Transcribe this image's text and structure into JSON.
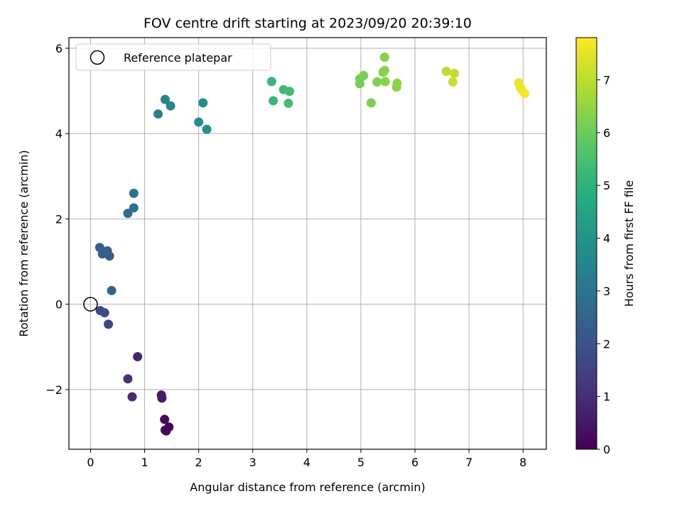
{
  "chart_data": {
    "type": "scatter",
    "title": "FOV centre drift starting at 2023/09/20 20:39:10",
    "xlabel": "Angular distance from reference (arcmin)",
    "ylabel": "Rotation from reference (arcmin)",
    "xlim": [
      -0.4,
      8.43
    ],
    "ylim": [
      -3.4,
      6.25
    ],
    "xticks": [
      0,
      1,
      2,
      3,
      4,
      5,
      6,
      7,
      8
    ],
    "yticks": [
      -2,
      0,
      2,
      4,
      6
    ],
    "ytick_labels": [
      "−2",
      "0",
      "2",
      "4",
      "6"
    ],
    "grid": true,
    "colorbar": {
      "label": "Hours from first FF file",
      "colormap": "viridis",
      "range": [
        0,
        7.8
      ],
      "ticks": [
        0,
        1,
        2,
        3,
        4,
        5,
        6,
        7
      ]
    },
    "legend": {
      "placement": "top-left",
      "entries": [
        {
          "label": "Reference platepar",
          "marker": "open-circle"
        }
      ]
    },
    "reference_point": {
      "x": 0,
      "y": 0
    },
    "points": [
      {
        "x": 1.38,
        "y": -2.95,
        "hours": 0.05
      },
      {
        "x": 1.45,
        "y": -2.88,
        "hours": 0.1
      },
      {
        "x": 1.4,
        "y": -2.97,
        "hours": 0.15
      },
      {
        "x": 1.37,
        "y": -2.7,
        "hours": 0.2
      },
      {
        "x": 1.32,
        "y": -2.2,
        "hours": 0.5
      },
      {
        "x": 1.31,
        "y": -2.13,
        "hours": 0.55
      },
      {
        "x": 0.87,
        "y": -1.23,
        "hours": 0.8
      },
      {
        "x": 0.77,
        "y": -2.17,
        "hours": 0.9
      },
      {
        "x": 0.69,
        "y": -1.75,
        "hours": 1.0
      },
      {
        "x": 0.33,
        "y": -0.47,
        "hours": 1.6
      },
      {
        "x": 0.26,
        "y": -0.2,
        "hours": 1.7
      },
      {
        "x": 0.18,
        "y": -0.15,
        "hours": 1.8
      },
      {
        "x": 0.39,
        "y": 0.32,
        "hours": 2.5
      },
      {
        "x": 0.35,
        "y": 1.13,
        "hours": 2.3
      },
      {
        "x": 0.31,
        "y": 1.25,
        "hours": 2.35
      },
      {
        "x": 0.22,
        "y": 1.18,
        "hours": 2.3
      },
      {
        "x": 0.17,
        "y": 1.33,
        "hours": 2.35
      },
      {
        "x": 0.69,
        "y": 2.13,
        "hours": 2.8
      },
      {
        "x": 0.8,
        "y": 2.26,
        "hours": 2.85
      },
      {
        "x": 0.8,
        "y": 2.6,
        "hours": 2.9
      },
      {
        "x": 1.25,
        "y": 4.46,
        "hours": 3.4
      },
      {
        "x": 1.38,
        "y": 4.8,
        "hours": 3.5
      },
      {
        "x": 1.48,
        "y": 4.65,
        "hours": 3.55
      },
      {
        "x": 2.08,
        "y": 4.72,
        "hours": 3.8
      },
      {
        "x": 2.0,
        "y": 4.27,
        "hours": 3.85
      },
      {
        "x": 2.15,
        "y": 4.1,
        "hours": 3.95
      },
      {
        "x": 3.35,
        "y": 5.22,
        "hours": 5.15
      },
      {
        "x": 3.38,
        "y": 4.77,
        "hours": 5.2
      },
      {
        "x": 3.57,
        "y": 5.03,
        "hours": 5.3
      },
      {
        "x": 3.68,
        "y": 4.99,
        "hours": 5.35
      },
      {
        "x": 3.66,
        "y": 4.71,
        "hours": 5.4
      },
      {
        "x": 4.98,
        "y": 5.28,
        "hours": 6.1
      },
      {
        "x": 4.98,
        "y": 5.17,
        "hours": 6.1
      },
      {
        "x": 5.05,
        "y": 5.36,
        "hours": 6.15
      },
      {
        "x": 5.19,
        "y": 4.72,
        "hours": 6.2
      },
      {
        "x": 5.3,
        "y": 5.21,
        "hours": 6.25
      },
      {
        "x": 5.41,
        "y": 5.44,
        "hours": 6.3
      },
      {
        "x": 5.44,
        "y": 5.48,
        "hours": 6.3
      },
      {
        "x": 5.44,
        "y": 5.79,
        "hours": 6.35
      },
      {
        "x": 5.45,
        "y": 5.22,
        "hours": 6.35
      },
      {
        "x": 5.67,
        "y": 5.18,
        "hours": 6.4
      },
      {
        "x": 5.66,
        "y": 5.09,
        "hours": 6.4
      },
      {
        "x": 6.58,
        "y": 5.46,
        "hours": 7.0
      },
      {
        "x": 6.73,
        "y": 5.41,
        "hours": 7.05
      },
      {
        "x": 6.7,
        "y": 5.21,
        "hours": 7.1
      },
      {
        "x": 7.92,
        "y": 5.19,
        "hours": 7.6
      },
      {
        "x": 7.95,
        "y": 5.08,
        "hours": 7.65
      },
      {
        "x": 7.97,
        "y": 5.03,
        "hours": 7.7
      },
      {
        "x": 8.03,
        "y": 4.94,
        "hours": 7.75
      }
    ]
  }
}
